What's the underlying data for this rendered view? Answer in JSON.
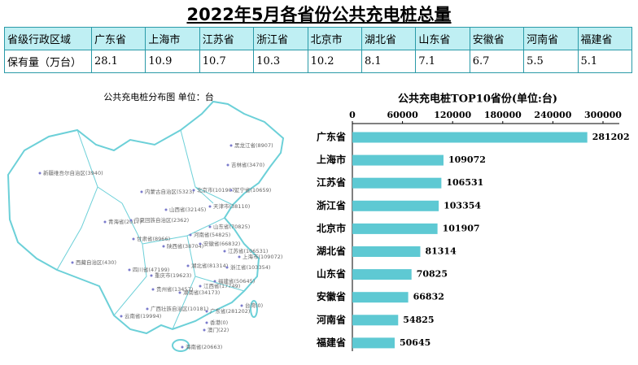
{
  "title": "2022年5月各省份公共充电桩总量",
  "table": {
    "rows": [
      [
        "省级行政区域",
        "广东省",
        "上海市",
        "江苏省",
        "浙江省",
        "北京市",
        "湖北省",
        "山东省",
        "安徽省",
        "河南省",
        "福建省"
      ],
      [
        "保有量（万台）",
        28.1,
        10.9,
        10.7,
        10.3,
        10.2,
        8.1,
        7.1,
        6.7,
        5.5,
        5.1
      ]
    ]
  },
  "map": {
    "title": "公共充电桩分布图   单位：台",
    "labels": [
      "黑龙江省(8907)",
      "吉林省(3470)",
      "新疆维吾尔自治区(3940)",
      "内蒙古自治区(5323)",
      "北京市(101907)",
      "辽宁省(10659)",
      "天津市(38110)",
      "青海省(2017)",
      "宁夏回族自治区(2362)",
      "甘肃省(8966)",
      "山西省(32145)",
      "山东省(70825)",
      "河南省(54825)",
      "陕西省(38704)",
      "安徽省(66832)",
      "江苏省(106531)",
      "上海市(109072)",
      "西藏自治区(430)",
      "四川省(47199)",
      "湖北省(81314)",
      "浙江省(103354)",
      "重庆市(19623)",
      "贵州省(13457)",
      "湖南省(34173)",
      "江西省(17749)",
      "福建省(50645)",
      "台湾(0)",
      "广西壮族自治区(10181)",
      "云南省(19994)",
      "广东省(281202)",
      "香港(0)",
      "澳门(22)",
      "海南省(20663)"
    ]
  },
  "chart_data": {
    "type": "barh",
    "title": "公共充电桩TOP10省份(单位:台)",
    "categories": [
      "广东省",
      "上海市",
      "江苏省",
      "浙江省",
      "北京市",
      "湖北省",
      "山东省",
      "安徽省",
      "河南省",
      "福建省"
    ],
    "values": [
      281202,
      109072,
      106531,
      103354,
      101907,
      81314,
      70825,
      66832,
      54825,
      50645
    ],
    "color": "#5ec9d3",
    "xlim": [
      0,
      300000
    ],
    "xticks": [
      0,
      60000,
      120000,
      180000,
      240000,
      300000
    ]
  }
}
